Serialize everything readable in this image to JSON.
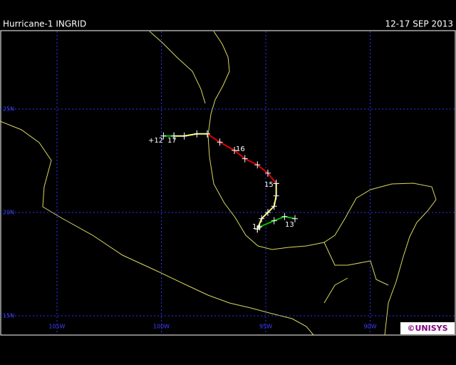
{
  "title": "Hurricane-1 INGRID",
  "date": "12-17 SEP 2013",
  "logo": "©UNISYS",
  "lat_lines": [
    {
      "value": 25,
      "label": "25N"
    },
    {
      "value": 20,
      "label": "20N"
    },
    {
      "value": 15,
      "label": "15N"
    }
  ],
  "lon_lines": [
    {
      "value": -105,
      "label": "105W"
    },
    {
      "value": -100,
      "label": "100W"
    },
    {
      "value": -95,
      "label": "95W"
    },
    {
      "value": -90,
      "label": "90W"
    }
  ],
  "track": [
    {
      "color": "#00c000",
      "lon": [
        -93.6,
        -94.1,
        -94.6,
        -95.3,
        -95.4
      ],
      "lat": [
        19.7,
        19.8,
        19.6,
        19.3,
        19.2
      ]
    },
    {
      "color": "#ffff80",
      "lon": [
        -95.4,
        -95.2,
        -94.9,
        -94.6,
        -94.5,
        -94.5
      ],
      "lat": [
        19.2,
        19.7,
        20.0,
        20.3,
        20.8,
        21.4
      ]
    },
    {
      "color": "#e00000",
      "lon": [
        -94.5,
        -94.9,
        -95.4,
        -96.0,
        -96.5,
        -97.2,
        -97.8
      ],
      "lat": [
        21.4,
        21.9,
        22.3,
        22.6,
        23.0,
        23.4,
        23.8
      ]
    },
    {
      "color": "#ffff80",
      "lon": [
        -97.8,
        -98.3,
        -98.9,
        -99.4
      ],
      "lat": [
        23.8,
        23.8,
        23.7,
        23.7
      ]
    },
    {
      "color": "#00c000",
      "lon": [
        -99.4,
        -99.9
      ],
      "lat": [
        23.7,
        23.7
      ]
    }
  ],
  "day_labels": [
    "13",
    "14",
    "15",
    "16",
    "17",
    "+12"
  ]
}
